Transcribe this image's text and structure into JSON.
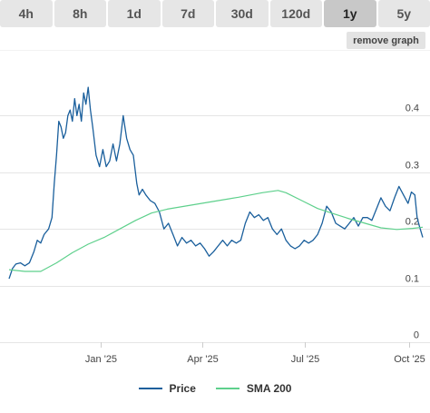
{
  "tabs": [
    {
      "label": "4h",
      "active": false
    },
    {
      "label": "8h",
      "active": false
    },
    {
      "label": "1d",
      "active": false
    },
    {
      "label": "7d",
      "active": false
    },
    {
      "label": "30d",
      "active": false
    },
    {
      "label": "120d",
      "active": false
    },
    {
      "label": "1y",
      "active": true
    },
    {
      "label": "5y",
      "active": false
    }
  ],
  "remove_graph_label": "remove graph",
  "colors": {
    "price": "#1a5f9c",
    "sma": "#5ed08c",
    "grid": "#e5e5e5",
    "tab_bg": "#e6e6e6",
    "tab_active": "#c8c8c8"
  },
  "chart_data": {
    "type": "line",
    "xlim": [
      "2024-10-12",
      "2025-10-13"
    ],
    "ylim": [
      0,
      0.5
    ],
    "y_ticks": [
      {
        "value": 0,
        "label": "0"
      },
      {
        "value": 0.1,
        "label": "0.1"
      },
      {
        "value": 0.2,
        "label": "0.2"
      },
      {
        "value": 0.3,
        "label": "0.3"
      },
      {
        "value": 0.4,
        "label": "0.4"
      }
    ],
    "x_ticks": [
      {
        "date": "2025-01-01",
        "label": "Jan '25"
      },
      {
        "date": "2025-04-01",
        "label": "Apr '25"
      },
      {
        "date": "2025-07-01",
        "label": "Jul '25"
      },
      {
        "date": "2025-10-01",
        "label": "Oct '25"
      }
    ],
    "grid": true,
    "legend_position": "bottom",
    "series": [
      {
        "name": "Price",
        "points": [
          [
            "2024-10-12",
            0.112
          ],
          [
            "2024-10-15",
            0.13
          ],
          [
            "2024-10-18",
            0.138
          ],
          [
            "2024-10-22",
            0.14
          ],
          [
            "2024-10-26",
            0.135
          ],
          [
            "2024-10-30",
            0.14
          ],
          [
            "2024-11-03",
            0.16
          ],
          [
            "2024-11-06",
            0.18
          ],
          [
            "2024-11-09",
            0.175
          ],
          [
            "2024-11-12",
            0.19
          ],
          [
            "2024-11-16",
            0.2
          ],
          [
            "2024-11-19",
            0.22
          ],
          [
            "2024-11-21",
            0.28
          ],
          [
            "2024-11-23",
            0.33
          ],
          [
            "2024-11-25",
            0.39
          ],
          [
            "2024-11-27",
            0.38
          ],
          [
            "2024-11-29",
            0.36
          ],
          [
            "2024-12-01",
            0.37
          ],
          [
            "2024-12-03",
            0.4
          ],
          [
            "2024-12-05",
            0.41
          ],
          [
            "2024-12-07",
            0.39
          ],
          [
            "2024-12-09",
            0.43
          ],
          [
            "2024-12-11",
            0.4
          ],
          [
            "2024-12-13",
            0.42
          ],
          [
            "2024-12-15",
            0.39
          ],
          [
            "2024-12-17",
            0.44
          ],
          [
            "2024-12-19",
            0.42
          ],
          [
            "2024-12-21",
            0.45
          ],
          [
            "2024-12-23",
            0.41
          ],
          [
            "2024-12-25",
            0.38
          ],
          [
            "2024-12-28",
            0.33
          ],
          [
            "2024-12-31",
            0.31
          ],
          [
            "2025-01-03",
            0.34
          ],
          [
            "2025-01-06",
            0.31
          ],
          [
            "2025-01-09",
            0.32
          ],
          [
            "2025-01-12",
            0.35
          ],
          [
            "2025-01-15",
            0.32
          ],
          [
            "2025-01-18",
            0.35
          ],
          [
            "2025-01-21",
            0.4
          ],
          [
            "2025-01-24",
            0.36
          ],
          [
            "2025-01-27",
            0.34
          ],
          [
            "2025-01-30",
            0.33
          ],
          [
            "2025-02-02",
            0.28
          ],
          [
            "2025-02-04",
            0.26
          ],
          [
            "2025-02-07",
            0.27
          ],
          [
            "2025-02-10",
            0.26
          ],
          [
            "2025-02-14",
            0.25
          ],
          [
            "2025-02-18",
            0.245
          ],
          [
            "2025-02-22",
            0.23
          ],
          [
            "2025-02-26",
            0.2
          ],
          [
            "2025-03-02",
            0.21
          ],
          [
            "2025-03-06",
            0.19
          ],
          [
            "2025-03-10",
            0.17
          ],
          [
            "2025-03-14",
            0.185
          ],
          [
            "2025-03-18",
            0.175
          ],
          [
            "2025-03-22",
            0.18
          ],
          [
            "2025-03-26",
            0.17
          ],
          [
            "2025-03-30",
            0.175
          ],
          [
            "2025-04-03",
            0.165
          ],
          [
            "2025-04-07",
            0.152
          ],
          [
            "2025-04-11",
            0.16
          ],
          [
            "2025-04-15",
            0.17
          ],
          [
            "2025-04-19",
            0.18
          ],
          [
            "2025-04-23",
            0.17
          ],
          [
            "2025-04-27",
            0.18
          ],
          [
            "2025-05-01",
            0.175
          ],
          [
            "2025-05-05",
            0.18
          ],
          [
            "2025-05-09",
            0.21
          ],
          [
            "2025-05-13",
            0.23
          ],
          [
            "2025-05-17",
            0.22
          ],
          [
            "2025-05-21",
            0.225
          ],
          [
            "2025-05-25",
            0.215
          ],
          [
            "2025-05-29",
            0.22
          ],
          [
            "2025-06-02",
            0.2
          ],
          [
            "2025-06-06",
            0.19
          ],
          [
            "2025-06-10",
            0.2
          ],
          [
            "2025-06-14",
            0.18
          ],
          [
            "2025-06-18",
            0.17
          ],
          [
            "2025-06-22",
            0.165
          ],
          [
            "2025-06-26",
            0.17
          ],
          [
            "2025-06-30",
            0.18
          ],
          [
            "2025-07-04",
            0.175
          ],
          [
            "2025-07-08",
            0.18
          ],
          [
            "2025-07-12",
            0.19
          ],
          [
            "2025-07-16",
            0.21
          ],
          [
            "2025-07-20",
            0.24
          ],
          [
            "2025-07-24",
            0.23
          ],
          [
            "2025-07-28",
            0.21
          ],
          [
            "2025-08-01",
            0.205
          ],
          [
            "2025-08-05",
            0.2
          ],
          [
            "2025-08-09",
            0.21
          ],
          [
            "2025-08-13",
            0.22
          ],
          [
            "2025-08-17",
            0.205
          ],
          [
            "2025-08-21",
            0.22
          ],
          [
            "2025-08-25",
            0.22
          ],
          [
            "2025-08-29",
            0.215
          ],
          [
            "2025-09-02",
            0.235
          ],
          [
            "2025-09-06",
            0.255
          ],
          [
            "2025-09-10",
            0.24
          ],
          [
            "2025-09-14",
            0.232
          ],
          [
            "2025-09-18",
            0.255
          ],
          [
            "2025-09-22",
            0.275
          ],
          [
            "2025-09-26",
            0.26
          ],
          [
            "2025-09-30",
            0.245
          ],
          [
            "2025-10-03",
            0.265
          ],
          [
            "2025-10-06",
            0.26
          ],
          [
            "2025-10-08",
            0.22
          ],
          [
            "2025-10-10",
            0.205
          ],
          [
            "2025-10-13",
            0.185
          ]
        ]
      },
      {
        "name": "SMA 200",
        "points": [
          [
            "2024-10-12",
            0.128
          ],
          [
            "2024-10-26",
            0.125
          ],
          [
            "2024-11-09",
            0.125
          ],
          [
            "2024-11-23",
            0.14
          ],
          [
            "2024-12-07",
            0.158
          ],
          [
            "2024-12-21",
            0.173
          ],
          [
            "2025-01-04",
            0.185
          ],
          [
            "2025-01-18",
            0.2
          ],
          [
            "2025-02-01",
            0.215
          ],
          [
            "2025-02-15",
            0.228
          ],
          [
            "2025-03-01",
            0.235
          ],
          [
            "2025-03-22",
            0.242
          ],
          [
            "2025-04-12",
            0.249
          ],
          [
            "2025-05-03",
            0.256
          ],
          [
            "2025-05-24",
            0.264
          ],
          [
            "2025-06-07",
            0.268
          ],
          [
            "2025-06-14",
            0.264
          ],
          [
            "2025-06-28",
            0.25
          ],
          [
            "2025-07-12",
            0.236
          ],
          [
            "2025-07-26",
            0.227
          ],
          [
            "2025-08-09",
            0.218
          ],
          [
            "2025-08-23",
            0.21
          ],
          [
            "2025-09-06",
            0.202
          ],
          [
            "2025-09-20",
            0.199
          ],
          [
            "2025-10-04",
            0.201
          ],
          [
            "2025-10-13",
            0.203
          ]
        ]
      }
    ]
  }
}
